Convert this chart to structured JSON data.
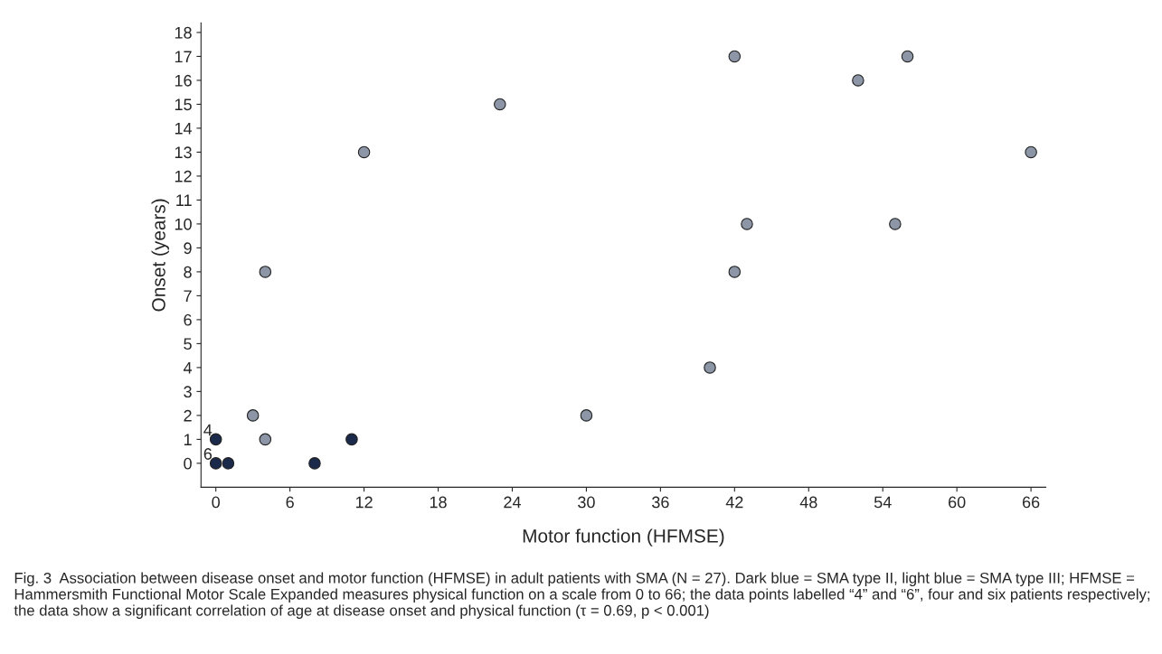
{
  "chart_data": {
    "type": "scatter",
    "xlabel": "Motor function (HFMSE)",
    "ylabel": "Onset (years)",
    "xlim": [
      -1.2,
      67.2
    ],
    "xticks": [
      0,
      6,
      12,
      18,
      24,
      30,
      36,
      42,
      48,
      54,
      60,
      66
    ],
    "ylim": [
      -1.0,
      18.4
    ],
    "yticks": [
      0,
      1,
      2,
      3,
      4,
      5,
      6,
      7,
      8,
      9,
      10,
      11,
      12,
      13,
      14,
      15,
      16,
      17,
      18
    ],
    "grid": false,
    "legend": false,
    "marker": "circle",
    "series": [
      {
        "color": "#1b2a4a",
        "x": [
          0,
          0,
          1,
          8,
          11
        ],
        "values": [
          1,
          0,
          0,
          0,
          1
        ]
      },
      {
        "color": "#8d96a6",
        "x": [
          3,
          4,
          4,
          12,
          23,
          30,
          40,
          42,
          42,
          43,
          52,
          55,
          56,
          66
        ],
        "values": [
          2,
          1,
          8,
          13,
          15,
          2,
          4,
          8,
          17,
          10,
          16,
          10,
          17,
          13
        ]
      }
    ],
    "annotations": [
      {
        "text": "4",
        "x": 0,
        "y": 1
      },
      {
        "text": "6",
        "x": 0,
        "y": 0
      },
      "Fig. 3  Association between disease onset and motor function (HFMSE) in adult patients with SMA (N = 27). Dark blue = SMA type II, light blue = SMA type III; HFMSE = Hammersmith Functional Motor Scale Expanded measures physical function on a scale from 0 to 66; the data points labelled “4” and “6”, four and six patients respectively; the data show a significant correlation of age at disease onset and physical function (τ = 0.69, p < 0.001)"
    ]
  }
}
